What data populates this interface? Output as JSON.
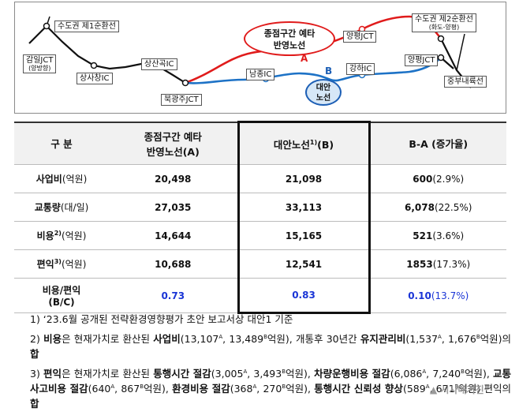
{
  "diagram": {
    "labels": {
      "loop1": "수도권 제1순환선",
      "loop2": "수도권 제2순환선",
      "loop2_sub": "(화도-양평)",
      "gangil": "감일JCT",
      "gangil_sub": "(양방향)",
      "sangsa": "상사창IC",
      "sangsangok": "상산곡IC",
      "bukgwangju": "북광주JCT",
      "namjong": "남종IC",
      "gangha": "강하IC",
      "yangpyeong_jct_top": "양평JCT",
      "yangpyeong_jct": "양평JCT",
      "jungbu": "중부내륙선"
    },
    "callout_a": "종점구간 예타 반영노선",
    "callout_a_line1": "종점구간 예타",
    "callout_a_line2": "반영노선",
    "tag_a": "A",
    "callout_b_line1": "대안",
    "callout_b_line2": "노선",
    "tag_b": "B",
    "colors": {
      "route_a": "#e01b1b",
      "route_b": "#1d72c6",
      "base": "#111111"
    }
  },
  "table": {
    "headers": {
      "category": "구 분",
      "route_a_line1": "종점구간 예타",
      "route_a_line2": "반영노선(A)",
      "route_b": "대안노선",
      "route_b_sup": "1)",
      "route_b_suffix": "(B)",
      "diff": "B-A (증가율)"
    },
    "rows": [
      {
        "label": "사업비",
        "unit": "(억원)",
        "sup": "",
        "a": "20,498",
        "b": "21,098",
        "diff": "600",
        "pct": "(2.9%)"
      },
      {
        "label": "교통량",
        "unit": "(대/일)",
        "sup": "",
        "a": "27,035",
        "b": "33,113",
        "diff": "6,078",
        "pct": "(22.5%)"
      },
      {
        "label": "비용",
        "unit": "(억원)",
        "sup": "2)",
        "a": "14,644",
        "b": "15,165",
        "diff": "521",
        "pct": "(3.6%)"
      },
      {
        "label": "편익",
        "unit": "(억원)",
        "sup": "3)",
        "a": "10,688",
        "b": "12,541",
        "diff": "1853",
        "pct": "(17.3%)"
      }
    ],
    "ratio": {
      "label_line1": "비용/편익",
      "label_line2": "(B/C)",
      "a": "0.73",
      "b": "0.83",
      "diff": "0.10",
      "pct": "(13.7%)"
    }
  },
  "notes": {
    "n1": "1)  ‘23.6월 공개된 전략환경영향평가 초안 보고서상 대안1 기준",
    "n2_pre": "2)  ",
    "n2_b1": "비용",
    "n2_t1": "은 현재가치로 환산된 ",
    "n2_b2": "사업비",
    "n2_t2": "(13,107",
    "n2_t3": ", 13,489",
    "n2_t4": "억원), 개통후 30년간 ",
    "n2_b3": "유지관리비",
    "n2_t5": "(1,537",
    "n2_t6": ", 1,676",
    "n2_t7": "억원)의 ",
    "n2_b4": "합",
    "n3_pre": "3)  ",
    "n3_b1": "편익",
    "n3_t1": "은 현재가치로 환산된 ",
    "n3_b2": "통행시간 절감",
    "n3_t2": "(3,005",
    "n3_t3": ", 3,493",
    "n3_t4": "억원), ",
    "n3_b3": "차량운행비용 절감",
    "n3_t5": "(6,086",
    "n3_t6": ", 7,240",
    "n3_t7": "억원), ",
    "n3_b4": "교통사고비용 절감",
    "n3_t8": "(640",
    "n3_t9": ", 867",
    "n3_t10": "억원), ",
    "n3_b5": "환경비용 절감",
    "n3_t11": "(368",
    "n3_t12": ", 270",
    "n3_t13": "억원), ",
    "n3_b6": "통행시간 신뢰성 향상",
    "n3_t14": "(589",
    "n3_t15": ", 671",
    "n3_t16": "억원) 편익의 ",
    "n3_b7": "합",
    "sup_a": "A",
    "sup_b": "B"
  },
  "watermark": "▲ 시사매거진"
}
